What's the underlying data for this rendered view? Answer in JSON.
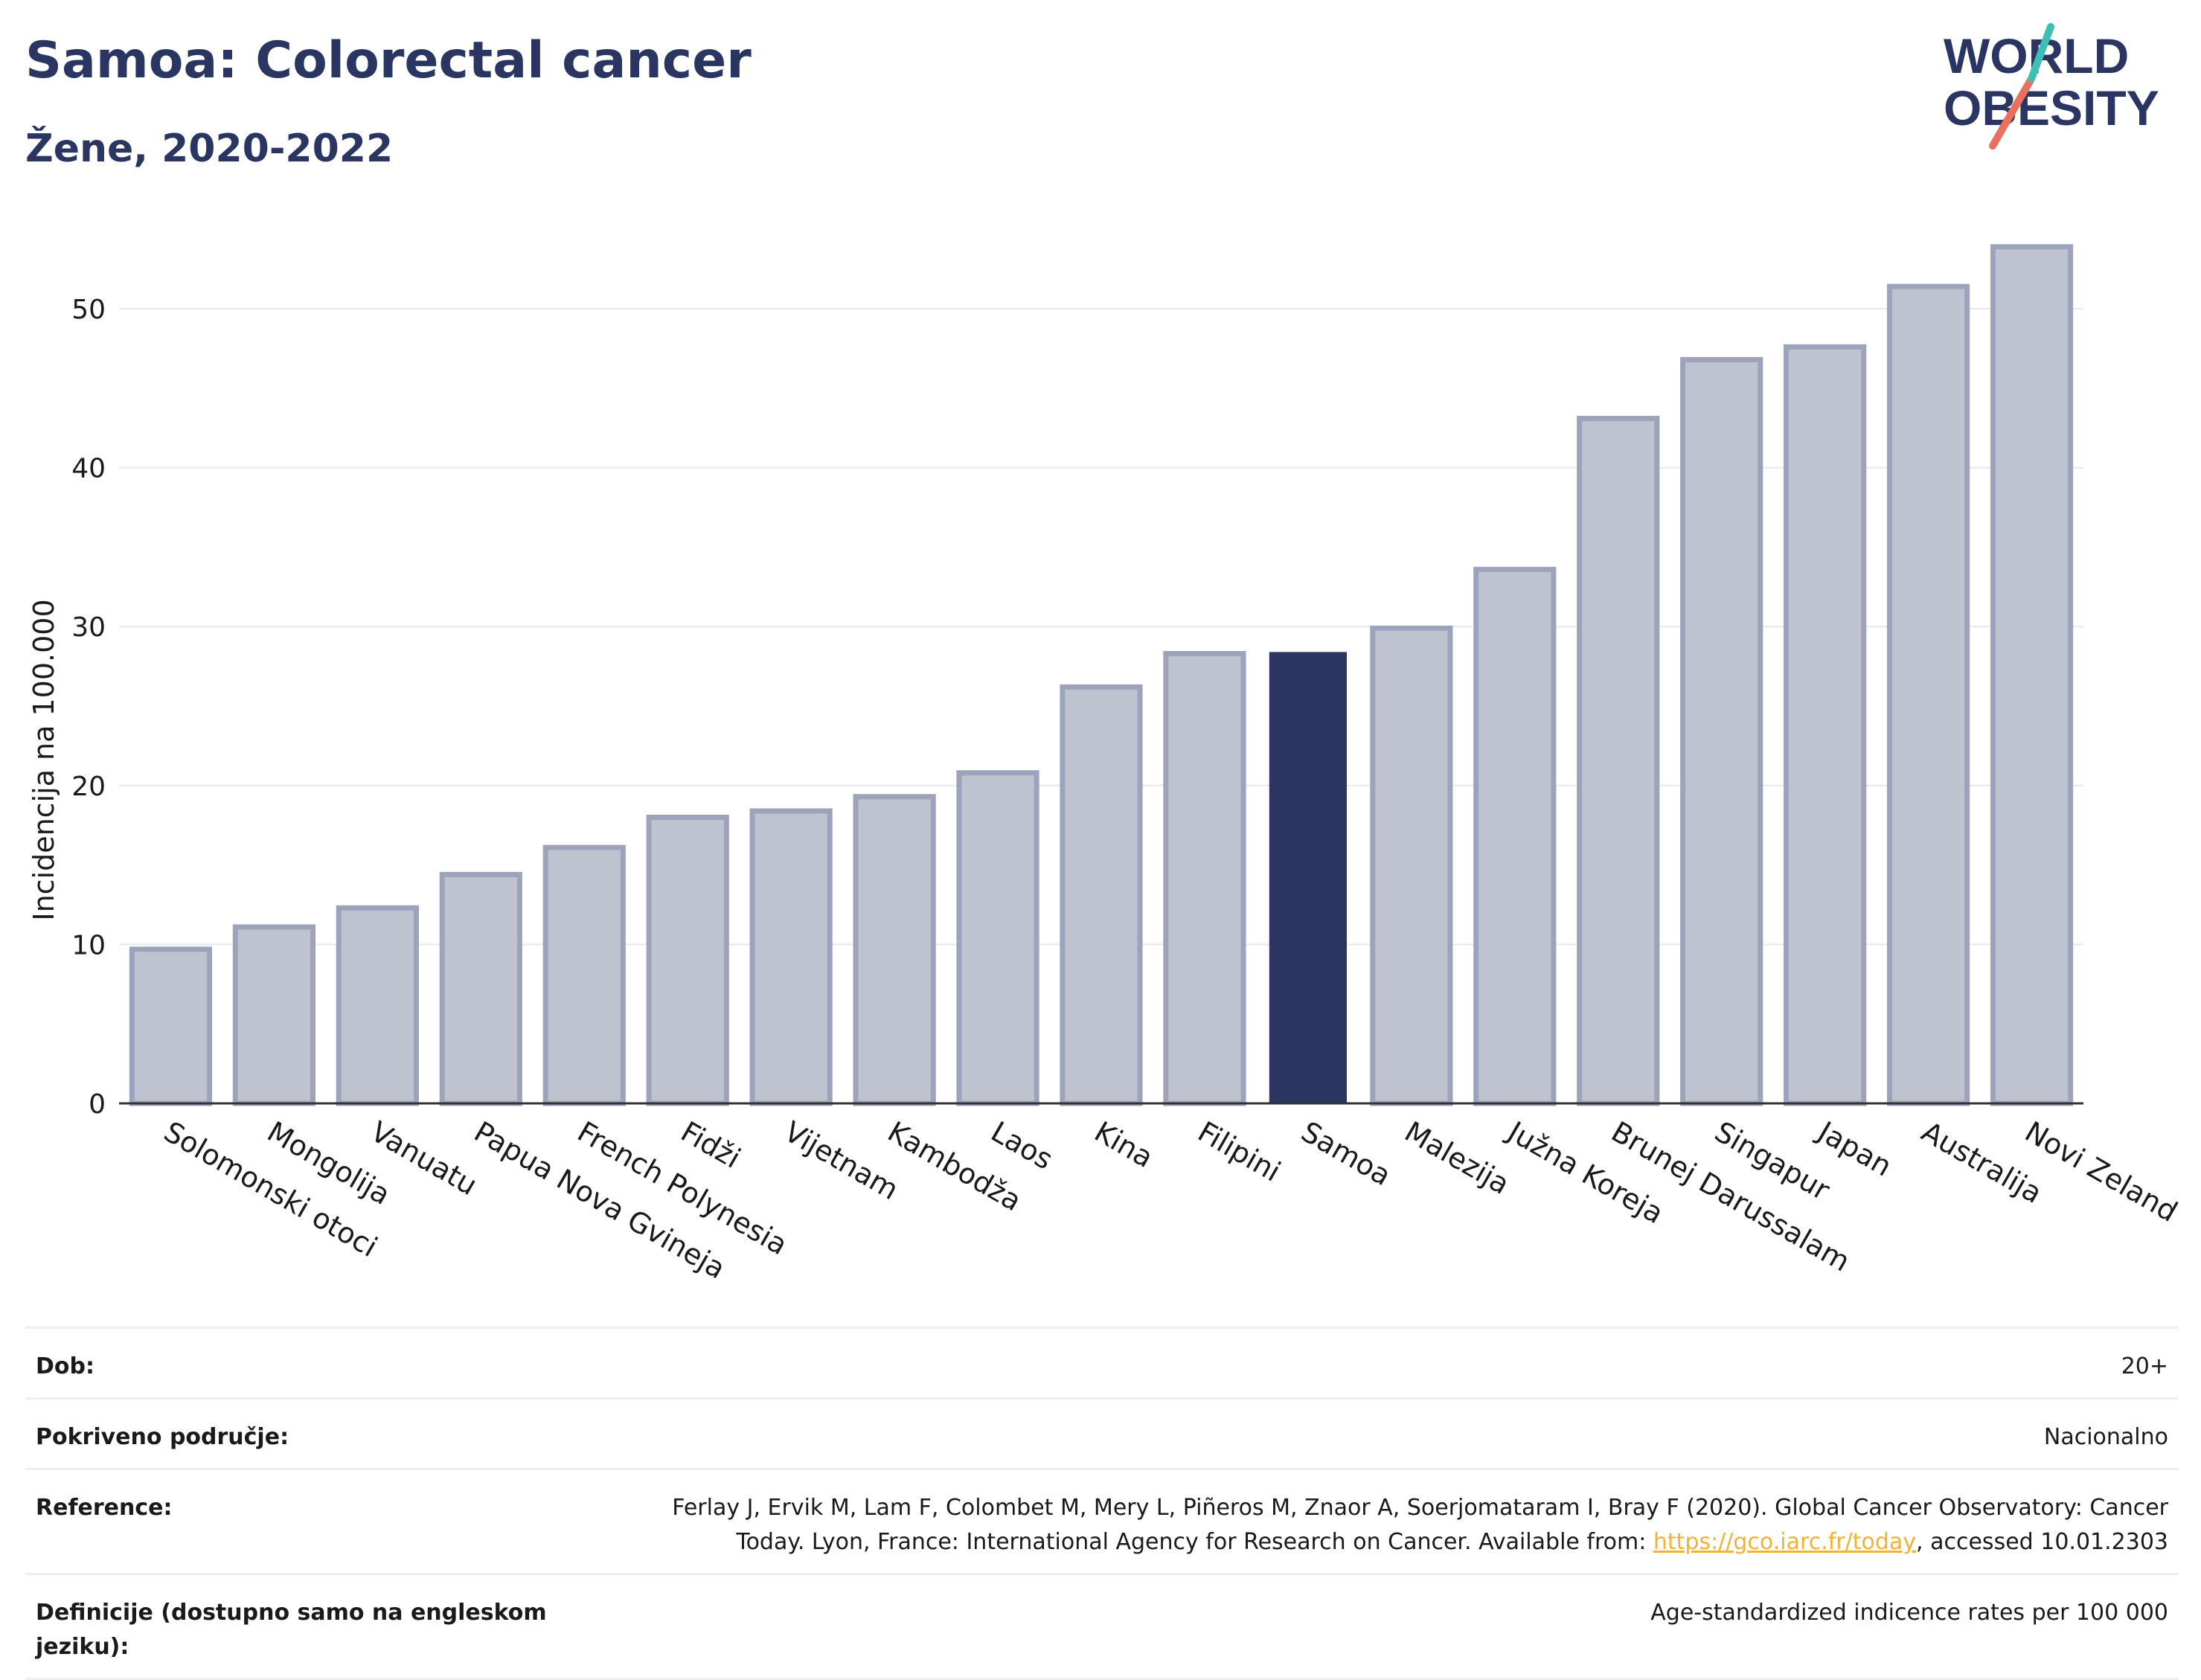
{
  "header": {
    "title": "Samoa: Colorectal cancer",
    "subtitle": "Žene, 2020-2022"
  },
  "logo": {
    "line1": "WORLD",
    "line2": "OBESITY"
  },
  "chart_data": {
    "type": "bar",
    "ylabel": "Incidencija na 100.000",
    "ylim": [
      0,
      56
    ],
    "yticks": [
      0,
      10,
      20,
      30,
      40,
      50
    ],
    "grid": true,
    "highlight": "Samoa",
    "colors": {
      "bar": "#2a3562",
      "bar_faded_fill": "#bfc2cf",
      "bar_faded_stroke": "#9da3ba",
      "highlight": "#2a3562"
    },
    "categories": [
      "Solomonski otoci",
      "Mongolija",
      "Vanuatu",
      "Papua Nova Gvineja",
      "French Polynesia",
      "Fidži",
      "Vijetnam",
      "Kambodža",
      "Laos",
      "Kina",
      "Filipini",
      "Samoa",
      "Malezija",
      "Južna Koreja",
      "Brunej Darussalam",
      "Singapur",
      "Japan",
      "Australija",
      "Novi Zeland"
    ],
    "values": [
      9.7,
      11.1,
      12.3,
      14.4,
      16.1,
      18.0,
      18.4,
      19.3,
      20.8,
      26.2,
      28.3,
      28.4,
      29.9,
      33.6,
      43.1,
      46.8,
      47.6,
      51.4,
      53.9
    ]
  },
  "info": {
    "rows": [
      {
        "label": "Dob:",
        "value": "20+"
      },
      {
        "label": "Pokriveno područje:",
        "value": "Nacionalno"
      },
      {
        "label": "Reference:",
        "value_before": "Ferlay J, Ervik M, Lam F, Colombet M, Mery L, Piñeros M, Znaor A, Soerjomataram I, Bray F (2020). Global Cancer Observatory: Cancer Today. Lyon, France: International Agency for Research on Cancer. Available from: ",
        "link": "https://gco.iarc.fr/today",
        "value_after": ", accessed 10.01.2303"
      },
      {
        "label": "Definicije (dostupno samo na engleskom jeziku):",
        "value": "Age-standardized indicence rates per 100 000"
      }
    ]
  }
}
